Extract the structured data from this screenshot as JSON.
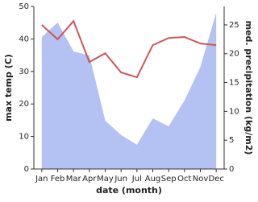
{
  "chart_data": {
    "type": "line",
    "x_label": "date (month)",
    "y_label": "max temp (C)",
    "y2_label": "med. precipitation (kg/m2)",
    "categories": [
      "Jan",
      "Feb",
      "Mar",
      "Apr",
      "May",
      "Jun",
      "Jul",
      "Aug",
      "Sep",
      "Oct",
      "Nov",
      "Dec"
    ],
    "ylim": [
      0,
      50
    ],
    "yticks": [
      0,
      10,
      20,
      30,
      40,
      50
    ],
    "y2lim": [
      0,
      28.2
    ],
    "y2ticks": [
      0,
      5,
      10,
      15,
      20,
      25
    ],
    "series": [
      {
        "name": "med. precipitation",
        "type": "area",
        "axis": "y2",
        "color": "#b4c2f3",
        "values": [
          22.9,
          25.4,
          20.4,
          19.7,
          8.4,
          5.9,
          4.2,
          8.8,
          7.4,
          11.9,
          17.7,
          27.1
        ]
      },
      {
        "name": "max temp",
        "type": "line",
        "color": "#cd5556",
        "values": [
          44.3,
          39.9,
          45.5,
          32.9,
          35.6,
          29.7,
          28.2,
          38.1,
          40.3,
          40.6,
          38.6,
          38.1
        ]
      }
    ]
  }
}
